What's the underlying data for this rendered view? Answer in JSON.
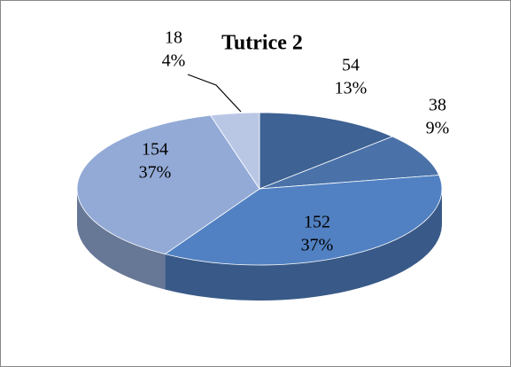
{
  "chart_data": {
    "type": "pie",
    "title": "Tutrice 2",
    "categories": [
      null,
      null,
      null,
      null,
      null
    ],
    "values": [
      54,
      38,
      152,
      154,
      18
    ],
    "percent_labels": [
      "13%",
      "9%",
      "37%",
      "37%",
      "4%"
    ],
    "colors": [
      "#3d6293",
      "#4a72a9",
      "#5181c2",
      "#93aad6",
      "#b9c7e5"
    ]
  }
}
